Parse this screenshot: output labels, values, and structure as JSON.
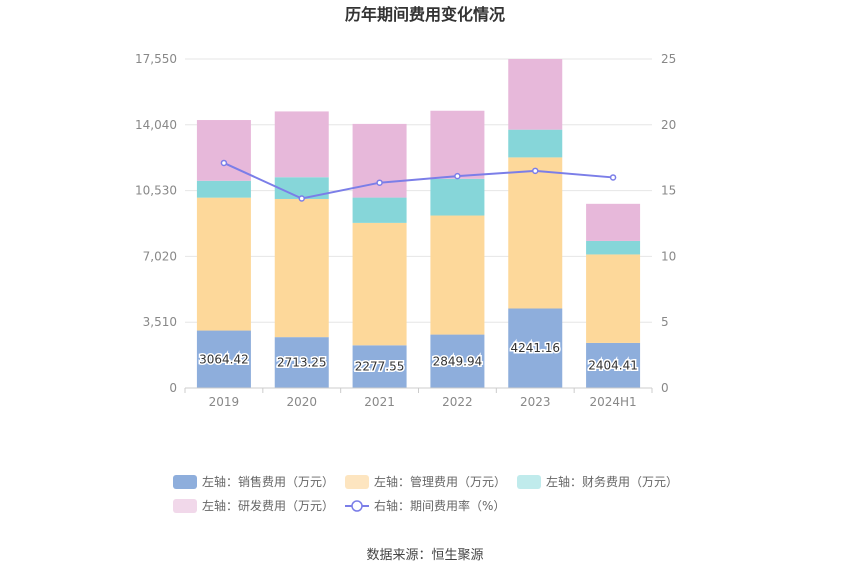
{
  "chart_data": {
    "type": "bar",
    "title": "历年期间费用变化情况",
    "categories": [
      "2019",
      "2020",
      "2021",
      "2022",
      "2023",
      "2024H1"
    ],
    "y_left": {
      "ticks": [
        "0",
        "3,510",
        "7,020",
        "10,530",
        "14,040",
        "17,550"
      ],
      "ylim": [
        0,
        17550
      ]
    },
    "y_right": {
      "ticks": [
        "0",
        "5",
        "10",
        "15",
        "20",
        "25"
      ],
      "ylim": [
        0,
        25
      ]
    },
    "series": [
      {
        "name": "左轴：销售费用（万元）",
        "kind": "bar",
        "color": "#8eaedc",
        "legend_color": "#8eaedc",
        "values": [
          3064.42,
          2713.25,
          2277.55,
          2849.94,
          4241.16,
          2404.41
        ],
        "labels": [
          "3064.42",
          "2713.25",
          "2277.55",
          "2849.94",
          "4241.16",
          "2404.41"
        ]
      },
      {
        "name": "左轴：管理费用（万元）",
        "kind": "bar",
        "color": "#fdd89a",
        "legend_color": "#fde5c0",
        "values": [
          7090,
          7370,
          6530,
          6350,
          8060,
          4720
        ]
      },
      {
        "name": "左轴：财务费用（万元）",
        "kind": "bar",
        "color": "#86d6d9",
        "legend_color": "#c0ebec",
        "values": [
          900,
          1160,
          1350,
          1960,
          1480,
          720
        ]
      },
      {
        "name": "左轴：研发费用（万元）",
        "kind": "bar",
        "color": "#e7b8da",
        "legend_color": "#f1d8ea",
        "values": [
          3240,
          3510,
          3930,
          3630,
          3770,
          1980
        ]
      },
      {
        "name": "右轴：期间费用率（%）",
        "kind": "line",
        "axis": "right",
        "color": "#7b7ee8",
        "values": [
          17.1,
          14.4,
          15.6,
          16.1,
          16.5,
          16.0
        ]
      }
    ],
    "source": "数据来源：恒生聚源"
  }
}
